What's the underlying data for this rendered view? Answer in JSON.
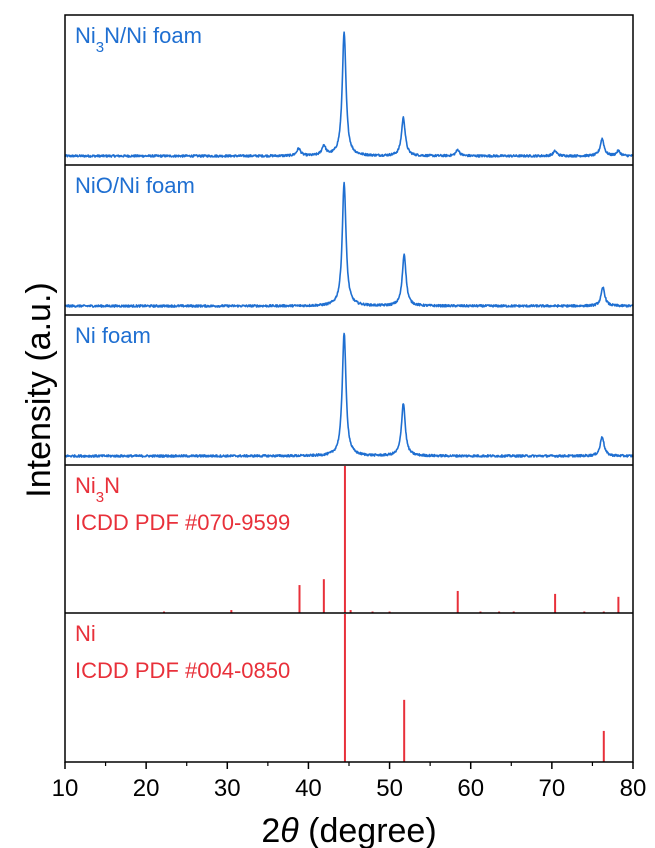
{
  "chart_data": {
    "type": "line",
    "xlabel_parts": {
      "prefix": "2",
      "symbol": "θ",
      "suffix": " (degree)"
    },
    "ylabel": "Intensity (a.u.)",
    "xlim": [
      10,
      80
    ],
    "xticks": [
      10,
      20,
      30,
      40,
      50,
      60,
      70,
      80
    ],
    "colors": {
      "blue": "#1f6fd1",
      "red": "#e8303a",
      "axis": "#000000"
    },
    "panels": [
      {
        "name": "Ni3N/Ni foam",
        "label_lines": [
          [
            "Ni",
            {
              "sub": "3"
            },
            "N/Ni foam"
          ]
        ],
        "kind": "pattern",
        "color": "#1f6fd1",
        "baseline": 0.06,
        "peaks": [
          {
            "x": 38.8,
            "h": 0.06
          },
          {
            "x": 41.9,
            "h": 0.08
          },
          {
            "x": 44.4,
            "h": 1.0
          },
          {
            "x": 51.7,
            "h": 0.31
          },
          {
            "x": 58.4,
            "h": 0.05
          },
          {
            "x": 70.4,
            "h": 0.04
          },
          {
            "x": 76.2,
            "h": 0.14
          },
          {
            "x": 78.2,
            "h": 0.04
          }
        ]
      },
      {
        "name": "NiO/Ni foam",
        "label_lines": [
          [
            "NiO/Ni foam"
          ]
        ],
        "kind": "pattern",
        "color": "#1f6fd1",
        "baseline": 0.06,
        "peaks": [
          {
            "x": 44.4,
            "h": 1.0
          },
          {
            "x": 51.8,
            "h": 0.42
          },
          {
            "x": 76.3,
            "h": 0.15
          }
        ]
      },
      {
        "name": "Ni foam",
        "label_lines": [
          [
            "Ni foam"
          ]
        ],
        "kind": "pattern",
        "color": "#1f6fd1",
        "baseline": 0.06,
        "peaks": [
          {
            "x": 44.4,
            "h": 1.0
          },
          {
            "x": 51.7,
            "h": 0.43
          },
          {
            "x": 76.2,
            "h": 0.16
          }
        ]
      },
      {
        "name": "Ni3N ICDD PDF #070-9599",
        "label_lines": [
          [
            "Ni",
            {
              "sub": "3"
            },
            "N"
          ],
          [
            "ICDD PDF #070-9599"
          ]
        ],
        "kind": "sticks",
        "color": "#e8303a",
        "sticks": [
          {
            "x": 22.2,
            "h": 0.01
          },
          {
            "x": 30.5,
            "h": 0.02
          },
          {
            "x": 38.9,
            "h": 0.19
          },
          {
            "x": 41.9,
            "h": 0.23
          },
          {
            "x": 44.5,
            "h": 1.0
          },
          {
            "x": 45.2,
            "h": 0.02
          },
          {
            "x": 47.9,
            "h": 0.01
          },
          {
            "x": 50.0,
            "h": 0.01
          },
          {
            "x": 58.4,
            "h": 0.15
          },
          {
            "x": 61.2,
            "h": 0.01
          },
          {
            "x": 63.5,
            "h": 0.01
          },
          {
            "x": 65.3,
            "h": 0.01
          },
          {
            "x": 70.4,
            "h": 0.13
          },
          {
            "x": 74.0,
            "h": 0.01
          },
          {
            "x": 76.4,
            "h": 0.01
          },
          {
            "x": 78.2,
            "h": 0.11
          }
        ]
      },
      {
        "name": "Ni ICDD PDF #004-0850",
        "label_lines": [
          [
            "Ni"
          ],
          [
            "ICDD PDF #004-0850"
          ]
        ],
        "kind": "sticks",
        "color": "#e8303a",
        "sticks": [
          {
            "x": 44.5,
            "h": 1.0
          },
          {
            "x": 51.8,
            "h": 0.42
          },
          {
            "x": 76.4,
            "h": 0.21
          }
        ]
      }
    ]
  }
}
